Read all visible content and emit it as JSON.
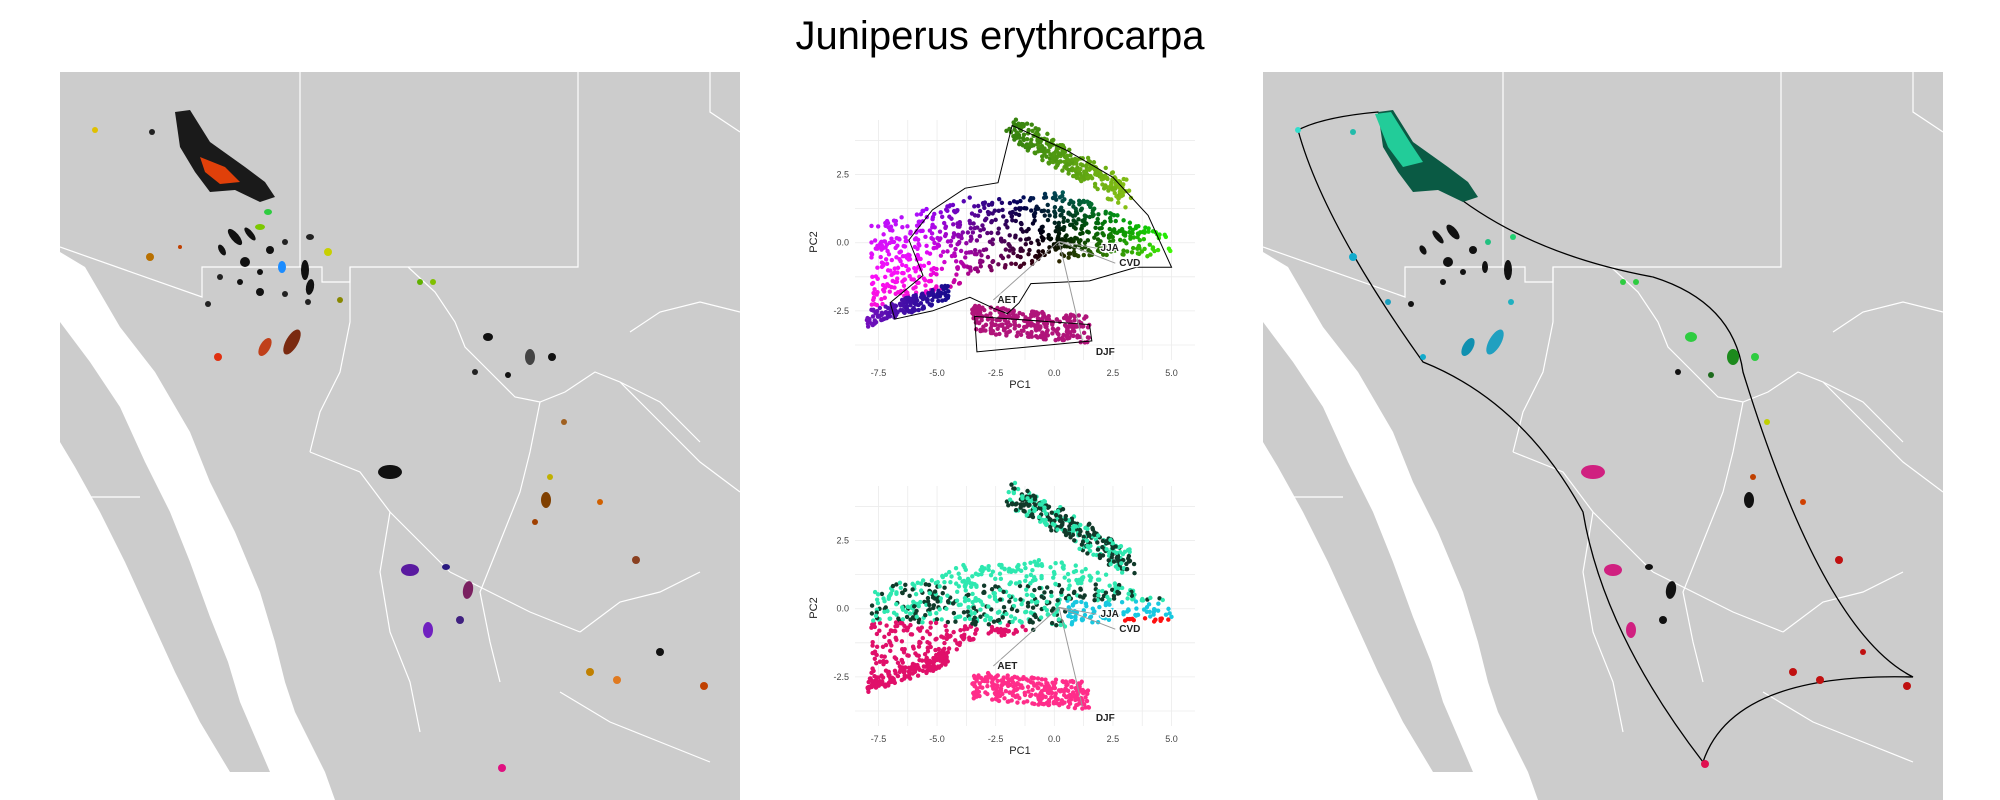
{
  "title": "Juniperus erythrocarpa",
  "colors": {
    "land": "#cccccc",
    "ocean": "#ffffff",
    "border": "#ffffff",
    "hull_line": "#000000",
    "grid": "#ebebeb"
  },
  "chart_data": [
    {
      "type": "scatter",
      "panel": "map-left",
      "description_role": "geographic map of occurrence cells colored by environmental PCA position",
      "grid": false,
      "legend": "none"
    },
    {
      "type": "scatter",
      "panel": "pca-top",
      "xlabel": "PC1",
      "ylabel": "PC2",
      "xlim": [
        -8.5,
        6.0
      ],
      "ylim": [
        -4.3,
        4.5
      ],
      "xticks": [
        -7.5,
        -5.0,
        -2.5,
        0.0,
        2.5,
        5.0
      ],
      "xtick_labels": [
        "-7.5",
        "-5.0",
        "-2.5",
        "0.0",
        "2.5",
        "5.0"
      ],
      "yticks": [
        2.5,
        0.0,
        -2.5
      ],
      "ytick_labels": [
        "2.5",
        "0.0",
        "-2.5"
      ],
      "grid": true,
      "annotations": [
        {
          "text": "JJA",
          "x": 1.8,
          "y": -0.2
        },
        {
          "text": "CVD",
          "x": 2.6,
          "y": -0.75
        },
        {
          "text": "AET",
          "x": -2.6,
          "y": -2.1
        },
        {
          "text": "DJF",
          "x": 1.6,
          "y": -4.0
        }
      ],
      "loadings": [
        {
          "name": "JJA",
          "x": 1.8,
          "y": -0.2
        },
        {
          "name": "CVD",
          "x": 2.6,
          "y": -0.75
        },
        {
          "name": "AET",
          "x": -2.6,
          "y": -2.1
        },
        {
          "name": "DJF",
          "x": 1.2,
          "y": -3.6
        }
      ]
    },
    {
      "type": "scatter",
      "panel": "pca-bottom",
      "xlabel": "PC1",
      "ylabel": "PC2",
      "xlim": [
        -8.5,
        6.0
      ],
      "ylim": [
        -4.3,
        4.5
      ],
      "xticks": [
        -7.5,
        -5.0,
        -2.5,
        0.0,
        2.5,
        5.0
      ],
      "xtick_labels": [
        "-7.5",
        "-5.0",
        "-2.5",
        "0.0",
        "2.5",
        "5.0"
      ],
      "yticks": [
        2.5,
        0.0,
        -2.5
      ],
      "ytick_labels": [
        "2.5",
        "0.0",
        "-2.5"
      ],
      "grid": true,
      "annotations": [
        {
          "text": "JJA",
          "x": 1.8,
          "y": -0.2
        },
        {
          "text": "CVD",
          "x": 2.6,
          "y": -0.75
        },
        {
          "text": "AET",
          "x": -2.6,
          "y": -2.1
        },
        {
          "text": "DJF",
          "x": 1.6,
          "y": -4.0
        }
      ],
      "clusters": [
        {
          "name": "dark-green",
          "color": "#103a2a"
        },
        {
          "name": "aqua-green",
          "color": "#2ee8b0"
        },
        {
          "name": "magenta",
          "color": "#e0106a"
        },
        {
          "name": "pink",
          "color": "#ff2d8a"
        },
        {
          "name": "cyan",
          "color": "#18c8e0"
        },
        {
          "name": "red",
          "color": "#ff1010"
        }
      ]
    },
    {
      "type": "scatter",
      "panel": "map-right",
      "description_role": "geographic map of occurrence cells colored by cluster with convex-hull outline",
      "grid": false,
      "legend": "none"
    }
  ]
}
